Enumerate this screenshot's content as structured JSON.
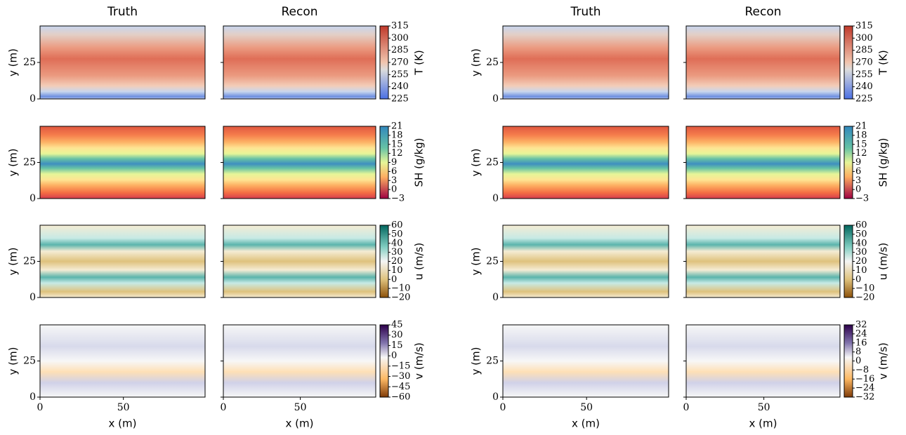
{
  "chart_data": [
    {
      "type": "contour",
      "columns": [
        "Truth",
        "Recon"
      ],
      "xlabel": "x (m)",
      "ylabel": "y (m)",
      "xlim": [
        0,
        99
      ],
      "xticks": [
        0,
        50
      ],
      "ylim": [
        0,
        50
      ],
      "yticks": [
        0,
        25
      ],
      "rows": [
        {
          "colorbar_label": "T (K)",
          "clim": [
            225,
            315
          ],
          "cticks": [
            315,
            300,
            285,
            270,
            255,
            240,
            225
          ]
        },
        {
          "colorbar_label": "SH (g/kg)",
          "clim": [
            -3,
            21
          ],
          "cticks": [
            21,
            18,
            15,
            12,
            9,
            6,
            3,
            0,
            {
              "value": -3,
              "label": "−3"
            }
          ]
        },
        {
          "colorbar_label": "u (m/s)",
          "clim": [
            -20,
            60
          ],
          "cticks": [
            60,
            50,
            40,
            30,
            20,
            10,
            0,
            {
              "value": -10,
              "label": "−10"
            },
            {
              "value": -20,
              "label": "−20"
            }
          ]
        },
        {
          "colorbar_label": "v (m/s)",
          "clim": [
            -60,
            45
          ],
          "cticks": [
            45,
            30,
            15,
            0,
            {
              "value": -15,
              "label": "−15"
            },
            {
              "value": -30,
              "label": "−30"
            },
            {
              "value": -45,
              "label": "−45"
            },
            {
              "value": -60,
              "label": "−60"
            }
          ]
        }
      ]
    },
    {
      "type": "contour",
      "columns": [
        "Truth",
        "Recon"
      ],
      "xlabel": "x (m)",
      "ylabel": "y (m)",
      "xlim": [
        0,
        99
      ],
      "xticks": [
        0,
        50
      ],
      "ylim": [
        0,
        50
      ],
      "yticks": [
        0,
        25
      ],
      "rows": [
        {
          "colorbar_label": "T (K)",
          "clim": [
            225,
            315
          ],
          "cticks": [
            315,
            300,
            285,
            270,
            255,
            240,
            225
          ]
        },
        {
          "colorbar_label": "SH (g/kg)",
          "clim": [
            -3,
            21
          ],
          "cticks": [
            21,
            18,
            15,
            12,
            9,
            6,
            3,
            0,
            {
              "value": -3,
              "label": "−3"
            }
          ]
        },
        {
          "colorbar_label": "u (m/s)",
          "clim": [
            -20,
            60
          ],
          "cticks": [
            60,
            50,
            40,
            30,
            20,
            10,
            0,
            {
              "value": -10,
              "label": "−10"
            },
            {
              "value": -20,
              "label": "−20"
            }
          ]
        },
        {
          "colorbar_label": "v (m/s)",
          "clim": [
            -32,
            32
          ],
          "cticks": [
            32,
            24,
            16,
            8,
            0,
            {
              "value": -8,
              "label": "−8"
            },
            {
              "value": -16,
              "label": "−16"
            },
            {
              "value": -24,
              "label": "−24"
            },
            {
              "value": -32,
              "label": "−32"
            }
          ]
        }
      ]
    }
  ]
}
